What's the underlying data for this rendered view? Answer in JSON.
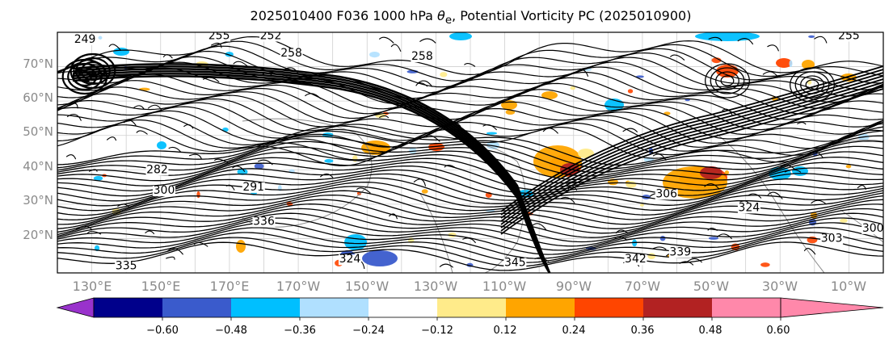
{
  "title_prefix": "2025010400 F036 1000 hPa ",
  "title_symbol": "θ",
  "title_sub": "e",
  "title_suffix": ", Potential Vorticity PC (2025010900)",
  "latitudes": [
    {
      "label": "70°N",
      "deg": 70
    },
    {
      "label": "60°N",
      "deg": 60
    },
    {
      "label": "50°N",
      "deg": 50
    },
    {
      "label": "40°N",
      "deg": 40
    },
    {
      "label": "30°N",
      "deg": 30
    },
    {
      "label": "20°N",
      "deg": 20
    }
  ],
  "longitudes": [
    {
      "label": "130°E",
      "deg": 130
    },
    {
      "label": "150°E",
      "deg": 150
    },
    {
      "label": "170°E",
      "deg": 170
    },
    {
      "label": "170°W",
      "deg": 190
    },
    {
      "label": "150°W",
      "deg": 210
    },
    {
      "label": "130°W",
      "deg": 230
    },
    {
      "label": "110°W",
      "deg": 250
    },
    {
      "label": "90°W",
      "deg": 270
    },
    {
      "label": "70°W",
      "deg": 290
    },
    {
      "label": "50°W",
      "deg": 310
    },
    {
      "label": "30°W",
      "deg": 330
    },
    {
      "label": "10°W",
      "deg": 350
    }
  ],
  "map_extent": {
    "lon_min": 120,
    "lon_max": 360,
    "lat_min": 10,
    "lat_max": 80
  },
  "colorbar": {
    "levels": [
      "−0.60",
      "−0.48",
      "−0.36",
      "−0.24",
      "−0.12",
      "0.12",
      "0.24",
      "0.36",
      "0.48",
      "0.60"
    ],
    "colors": [
      "#9932CC",
      "#00008B",
      "#3A5BCC",
      "#00BFFF",
      "#B0E0FF",
      "#FFFFFF",
      "#FFEB8A",
      "#FFA500",
      "#FF4500",
      "#B22222",
      "#FF88AA"
    ]
  },
  "contour_labels": [
    {
      "text": "249",
      "lon": 128,
      "lat": 77
    },
    {
      "text": "255",
      "lon": 167,
      "lat": 78
    },
    {
      "text": "252",
      "lon": 182,
      "lat": 78
    },
    {
      "text": "258",
      "lon": 188,
      "lat": 73
    },
    {
      "text": "258",
      "lon": 226,
      "lat": 72
    },
    {
      "text": "255",
      "lon": 350,
      "lat": 78
    },
    {
      "text": "282",
      "lon": 149,
      "lat": 39
    },
    {
      "text": "300",
      "lon": 151,
      "lat": 33
    },
    {
      "text": "291",
      "lon": 177,
      "lat": 34
    },
    {
      "text": "336",
      "lon": 180,
      "lat": 24
    },
    {
      "text": "306",
      "lon": 297,
      "lat": 32
    },
    {
      "text": "324",
      "lon": 321,
      "lat": 28
    },
    {
      "text": "339",
      "lon": 301,
      "lat": 15
    },
    {
      "text": "345",
      "lon": 253,
      "lat": 12
    },
    {
      "text": "342",
      "lon": 288,
      "lat": 13
    },
    {
      "text": "324",
      "lon": 205,
      "lat": 13
    },
    {
      "text": "335",
      "lon": 140,
      "lat": 11
    },
    {
      "text": "303",
      "lon": 345,
      "lat": 19
    },
    {
      "text": "300",
      "lon": 357,
      "lat": 22
    }
  ]
}
